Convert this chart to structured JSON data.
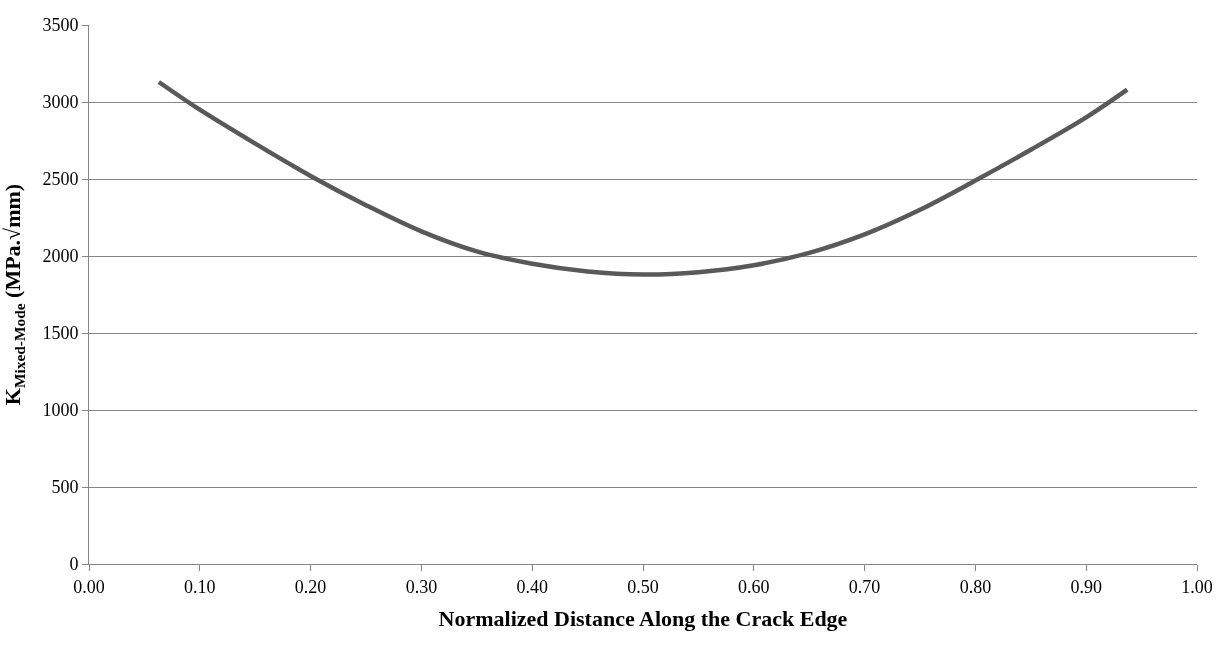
{
  "chart_data": {
    "type": "line",
    "xlabel": "Normalized Distance Along the Crack Edge",
    "ylabel": "K$_{Mixed-Mode}$ (MPa.√mm)",
    "x": [
      0.063,
      0.1,
      0.15,
      0.2,
      0.25,
      0.3,
      0.35,
      0.4,
      0.45,
      0.5,
      0.55,
      0.6,
      0.65,
      0.7,
      0.75,
      0.8,
      0.85,
      0.9,
      0.937
    ],
    "series": [
      {
        "color": "#595959",
        "values": [
          3130,
          2950,
          2730,
          2520,
          2330,
          2160,
          2030,
          1950,
          1900,
          1880,
          1895,
          1940,
          2020,
          2140,
          2300,
          2490,
          2690,
          2900,
          3080
        ]
      }
    ],
    "xlim": [
      0,
      1
    ],
    "xticks": [
      {
        "value": 0,
        "label": "0.00"
      },
      {
        "value": 0.1,
        "label": "0.10"
      },
      {
        "value": 0.2,
        "label": "0.20"
      },
      {
        "value": 0.3,
        "label": "0.30"
      },
      {
        "value": 0.4,
        "label": "0.40"
      },
      {
        "value": 0.5,
        "label": "0.50"
      },
      {
        "value": 0.6,
        "label": "0.60"
      },
      {
        "value": 0.7,
        "label": "0.70"
      },
      {
        "value": 0.8,
        "label": "0.80"
      },
      {
        "value": 0.9,
        "label": "0.90"
      },
      {
        "value": 1,
        "label": "1.00"
      }
    ],
    "ylim": [
      0,
      3500
    ],
    "yticks": [
      0,
      500,
      1000,
      1500,
      2000,
      2500,
      3000,
      3500
    ],
    "grid": "y",
    "marker": "none",
    "line_style": "solid"
  }
}
